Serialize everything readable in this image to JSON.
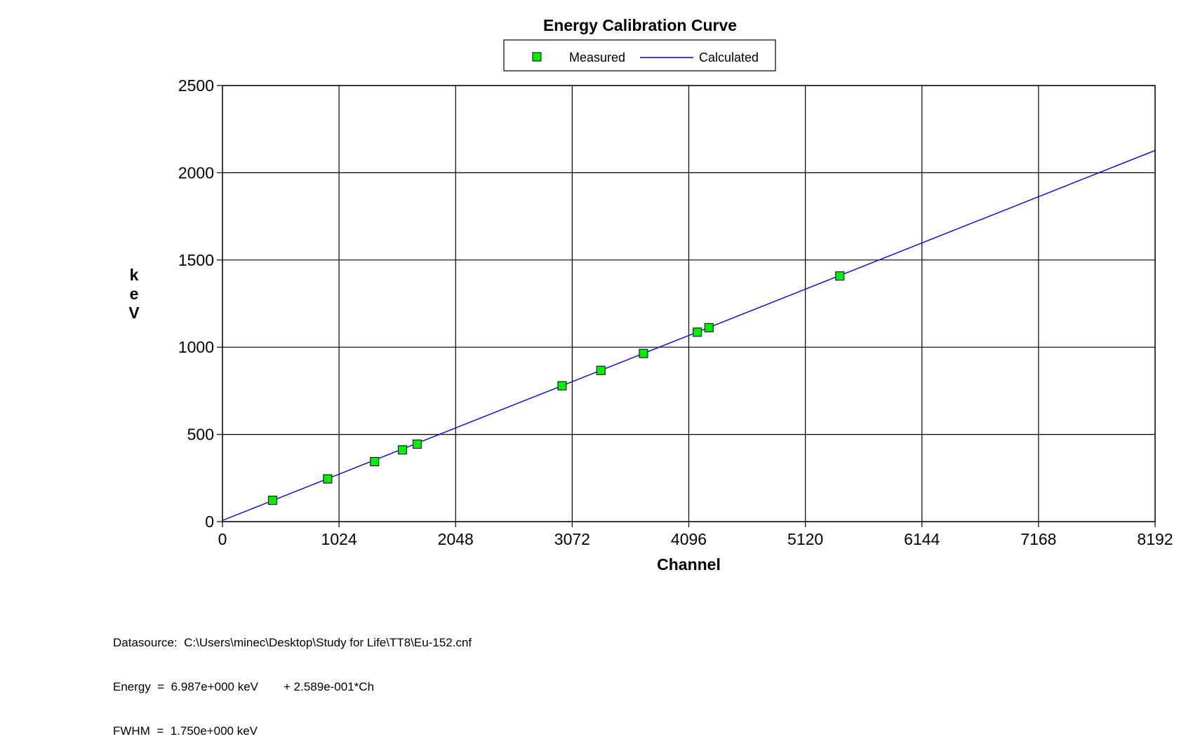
{
  "chart_data": {
    "type": "line",
    "title": "Energy Calibration Curve",
    "xlabel": "Channel",
    "ylabel": "keV",
    "xlim": [
      0,
      8192
    ],
    "ylim": [
      0,
      2500
    ],
    "x_ticks": [
      0,
      1024,
      2048,
      3072,
      4096,
      5120,
      6144,
      7168,
      8192
    ],
    "y_ticks": [
      0,
      500,
      1000,
      1500,
      2000,
      2500
    ],
    "grid": true,
    "legend_position": "top-center",
    "series": [
      {
        "name": "Measured",
        "kind": "scatter",
        "marker": "square",
        "color": "#00ee00",
        "x": [
          441,
          924,
          1336,
          1581,
          1710,
          2983,
          3324,
          3698,
          4171,
          4273,
          5423
        ],
        "y": [
          122,
          245,
          344,
          411,
          444,
          779,
          867,
          964,
          1086,
          1112,
          1408
        ]
      },
      {
        "name": "Calculated",
        "kind": "line",
        "color": "#0000ee",
        "x": [
          0,
          8192
        ],
        "y": [
          6.987,
          2127.9
        ]
      }
    ]
  },
  "footer": {
    "datasource": "Datasource:  C:\\Users\\minec\\Desktop\\Study for Life\\TT8\\Eu-152.cnf",
    "energy_left": "Energy  =  6.987e+000 keV",
    "energy_right": "+ 2.589e-001*Ch",
    "fwhm": "FWHM  =  1.750e+000 keV"
  }
}
